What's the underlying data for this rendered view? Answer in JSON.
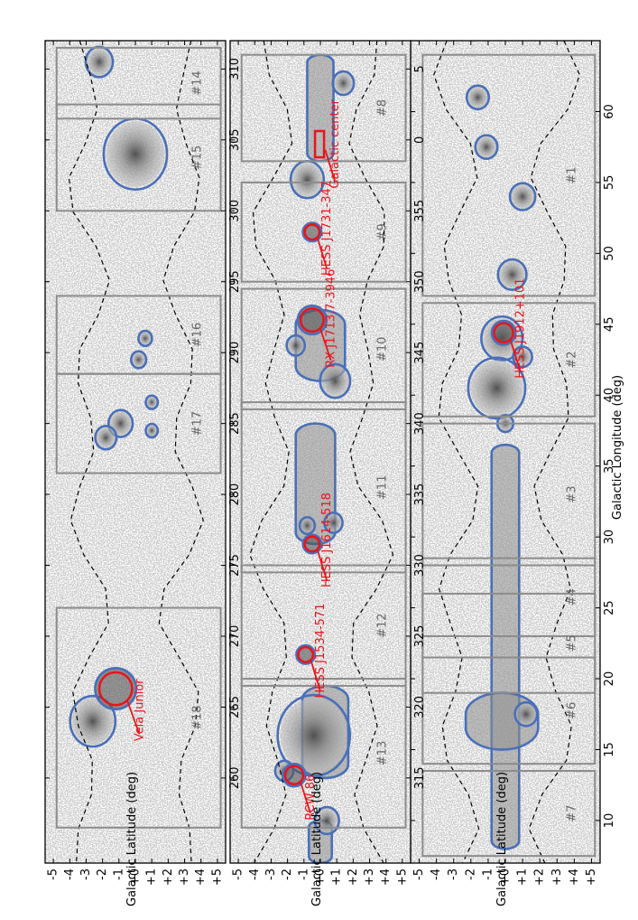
{
  "chart_data": {
    "type": "heatmap",
    "xlabel": "Galactic Longitude (deg)",
    "ylabel": "Galactic Latitude (deg)",
    "orientation": "rotated 90 degrees; longitude increases downward",
    "colors": {
      "background": "#ffffff",
      "noise": "#bcbcbc",
      "contour": "#4a6fb8",
      "source_circle": "#e8141c",
      "roi_box": "#8c8c8c",
      "exposure_boundary": "#000000"
    },
    "panels": [
      {
        "id": "top",
        "lon_range": [
          65,
          7
        ],
        "lat_range": [
          -5.5,
          5.5
        ],
        "lon_ticks": [
          "10",
          "15",
          "20",
          "25",
          "30",
          "35",
          "40",
          "45",
          "50",
          "55",
          "60"
        ],
        "lat_ticks": [
          "+5",
          "+4",
          "+3",
          "+2",
          "+1",
          "+0",
          "-1",
          "-2",
          "-3",
          "-4",
          "-5"
        ],
        "regions": [
          {
            "label": "#1",
            "lon": [
              64,
              47
            ],
            "lat": [
              -4.8,
              5.2
            ]
          },
          {
            "label": "#2",
            "lon": [
              46.5,
              38.5
            ],
            "lat": [
              -4.8,
              5.2
            ]
          },
          {
            "label": "#3",
            "lon": [
              38,
              28
            ],
            "lat": [
              -4.8,
              5.2
            ]
          },
          {
            "label": "#4",
            "lon": [
              28.5,
              23
            ],
            "lat": [
              -4.8,
              5.2
            ]
          },
          {
            "label": "#5",
            "lon": [
              26,
              19
            ],
            "lat": [
              -4.8,
              5.2
            ]
          },
          {
            "label": "#6",
            "lon": [
              21.5,
              14
            ],
            "lat": [
              -4.8,
              5.2
            ]
          },
          {
            "label": "#7",
            "lon": [
              13.5,
              7.5
            ],
            "lat": [
              -4.8,
              5.2
            ]
          }
        ],
        "blobs": [
          {
            "lon": 61,
            "lat": -1.6,
            "size": 0.7
          },
          {
            "lon": 57.5,
            "lat": -1.1,
            "size": 0.7
          },
          {
            "lon": 54,
            "lat": 1.0,
            "size": 0.8
          },
          {
            "lon": 48.5,
            "lat": 0.4,
            "size": 0.9
          },
          {
            "lon": 44,
            "lat": -0.2,
            "size": 1.3
          },
          {
            "lon": 42.7,
            "lat": 1.0,
            "size": 0.6
          },
          {
            "lon": 40.5,
            "lat": -0.5,
            "size": 1.8
          },
          {
            "lon": 38,
            "lat": 0.0,
            "size": 0.5
          },
          {
            "lon": 17.5,
            "lat": 1.2,
            "size": 0.7
          }
        ],
        "bands": [
          {
            "lon": [
              36.5,
              8
            ],
            "lat": 0.0,
            "half_width": 0.8
          },
          {
            "lon": [
              19,
              15
            ],
            "lat": -0.2,
            "half_width": 2.1
          }
        ],
        "sources": [
          {
            "name": "HESS J1912+101",
            "lon": 44.4,
            "lat": -0.1,
            "r": 0.55
          }
        ]
      },
      {
        "id": "middle",
        "lon_range": [
          7,
          -51
        ],
        "lat_range": [
          -5.5,
          5.5
        ],
        "lon_ticks": [
          "5",
          "0",
          "355",
          "350",
          "345",
          "340",
          "335",
          "330",
          "325",
          "320",
          "315"
        ],
        "lat_ticks": [
          "+5",
          "+4",
          "+3",
          "+2",
          "+1",
          "+0",
          "-1",
          "-2",
          "-3",
          "-4",
          "-5"
        ],
        "regions": [
          {
            "label": "#8",
            "lon": [
              6,
              -1.5
            ],
            "lat": [
              -4.8,
              5.2
            ]
          },
          {
            "label": "#9",
            "lon": [
              -3,
              -10
            ],
            "lat": [
              -4.8,
              5.2
            ]
          },
          {
            "label": "#10",
            "lon": [
              -10.5,
              -19
            ],
            "lat": [
              -4.8,
              5.2
            ]
          },
          {
            "label": "#11",
            "lon": [
              -18.5,
              -30.5
            ],
            "lat": [
              -4.8,
              5.2
            ]
          },
          {
            "label": "#12",
            "lon": [
              -30,
              -38.5
            ],
            "lat": [
              -4.8,
              5.2
            ]
          },
          {
            "label": "#13",
            "lon": [
              -38,
              -48.5
            ],
            "lat": [
              -4.8,
              5.2
            ]
          }
        ],
        "blobs": [
          {
            "lon": 4,
            "lat": 1.4,
            "size": 0.7
          },
          {
            "lon": -2.8,
            "lat": -0.8,
            "size": 1.1
          },
          {
            "lon": -17,
            "lat": 0.9,
            "size": 1.0
          },
          {
            "lon": -14.5,
            "lat": -1.5,
            "size": 0.6
          },
          {
            "lon": -27,
            "lat": 0.8,
            "size": 0.6
          },
          {
            "lon": -27.2,
            "lat": -0.8,
            "size": 0.5
          },
          {
            "lon": -42,
            "lat": -0.4,
            "size": 2.4
          },
          {
            "lon": -44.5,
            "lat": -2.2,
            "size": 0.6
          },
          {
            "lon": -48,
            "lat": 0.4,
            "size": 0.8
          }
        ],
        "bands": [
          {
            "lon": [
              6,
              -1.5
            ],
            "lat": 0.0,
            "half_width": 0.8
          },
          {
            "lon": [
              -12,
              -17
            ],
            "lat": 0.0,
            "half_width": 1.5
          },
          {
            "lon": [
              -20,
              -28.5
            ],
            "lat": -0.3,
            "half_width": 1.2
          },
          {
            "lon": [
              -38.5,
              -45
            ],
            "lat": 0.3,
            "half_width": 1.4
          },
          {
            "lon": [
              -48,
              -51
            ],
            "lat": 0.0,
            "half_width": 0.7
          }
        ],
        "sources": [
          {
            "name": "Galactic center",
            "lon": -0.3,
            "lat": -0.05,
            "r": 0.5,
            "shape": "box"
          },
          {
            "name": "HESS J1731-347",
            "lon": -6.5,
            "lat": -0.5,
            "r": 0.45
          },
          {
            "name": "RX J1713.7-3946",
            "lon": -12.7,
            "lat": -0.5,
            "r": 0.7
          },
          {
            "name": "HESS J1614-518",
            "lon": -28.5,
            "lat": -0.5,
            "r": 0.45
          },
          {
            "name": "HESS J1534-571",
            "lon": -36.3,
            "lat": -0.9,
            "r": 0.45
          },
          {
            "name": "RCW 86",
            "lon": -44.8,
            "lat": -1.6,
            "r": 0.55
          }
        ]
      },
      {
        "id": "bottom",
        "lon_range": [
          312,
          254
        ],
        "lat_range": [
          -5.5,
          5.5
        ],
        "lon_ticks": [
          "310",
          "305",
          "300",
          "295",
          "290",
          "285",
          "280",
          "275",
          "270",
          "265",
          "260"
        ],
        "lat_ticks": [
          "+5",
          "+4",
          "+3",
          "+2",
          "+1",
          "+0",
          "-1",
          "-2",
          "-3",
          "-4",
          "-5"
        ],
        "regions": [
          {
            "label": "#14",
            "lon": [
              311.5,
              306.5
            ],
            "lat": [
              -4.8,
              5.2
            ]
          },
          {
            "label": "#15",
            "lon": [
              307.5,
              300
            ],
            "lat": [
              -4.8,
              5.2
            ]
          },
          {
            "label": "#16",
            "lon": [
              294,
              288.5
            ],
            "lat": [
              -4.8,
              5.2
            ]
          },
          {
            "label": "#17",
            "lon": [
              288.5,
              281.5
            ],
            "lat": [
              -4.8,
              5.2
            ]
          },
          {
            "label": "#18",
            "lon": [
              272,
              256.5
            ],
            "lat": [
              -4.8,
              5.2
            ]
          }
        ],
        "blobs": [
          {
            "lon": 310.5,
            "lat": -2.2,
            "size": 0.9
          },
          {
            "lon": 304,
            "lat": 0.0,
            "size": 2.1
          },
          {
            "lon": 291,
            "lat": 0.6,
            "size": 0.45
          },
          {
            "lon": 289.5,
            "lat": 0.2,
            "size": 0.5
          },
          {
            "lon": 285,
            "lat": -0.9,
            "size": 0.8
          },
          {
            "lon": 284,
            "lat": -1.8,
            "size": 0.7
          },
          {
            "lon": 286.5,
            "lat": 1.0,
            "size": 0.4
          },
          {
            "lon": 284.5,
            "lat": 1.0,
            "size": 0.4
          },
          {
            "lon": 264,
            "lat": -2.6,
            "size": 1.5
          }
        ],
        "bands": [],
        "sources": [
          {
            "name": "Vela Junior",
            "lon": 266.3,
            "lat": -1.2,
            "r": 1.0
          }
        ]
      }
    ]
  }
}
